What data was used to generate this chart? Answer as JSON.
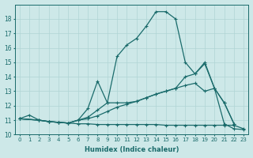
{
  "xlabel": "Humidex (Indice chaleur)",
  "bg_color": "#cde8e8",
  "line_color": "#1a6b6b",
  "grid_color": "#b0d4d4",
  "xlim": [
    -0.5,
    23.5
  ],
  "ylim": [
    10,
    19
  ],
  "yticks": [
    10,
    11,
    12,
    13,
    14,
    15,
    16,
    17,
    18
  ],
  "xticks": [
    0,
    1,
    2,
    3,
    4,
    5,
    6,
    7,
    8,
    9,
    10,
    11,
    12,
    13,
    14,
    15,
    16,
    17,
    18,
    19,
    20,
    21,
    22,
    23
  ],
  "series": [
    {
      "x": [
        0,
        1,
        2,
        3,
        4,
        5,
        6,
        7,
        8,
        9,
        10,
        11,
        12,
        13,
        14,
        15,
        16,
        17,
        18,
        19,
        20,
        21,
        22,
        23
      ],
      "y": [
        11.1,
        11.35,
        11.0,
        10.9,
        10.85,
        10.8,
        10.75,
        10.75,
        10.7,
        10.7,
        10.7,
        10.7,
        10.7,
        10.7,
        10.7,
        10.65,
        10.65,
        10.65,
        10.65,
        10.65,
        10.65,
        10.65,
        10.65,
        10.4
      ]
    },
    {
      "x": [
        0,
        2,
        3,
        4,
        5,
        6,
        7,
        8,
        9,
        10,
        11,
        12,
        13,
        14,
        15,
        16,
        17,
        18,
        19,
        20,
        21,
        22,
        23
      ],
      "y": [
        11.1,
        11.0,
        10.9,
        10.85,
        10.8,
        11.0,
        11.1,
        11.3,
        11.6,
        11.9,
        12.1,
        12.3,
        12.55,
        12.8,
        13.0,
        13.2,
        13.4,
        13.55,
        13.0,
        13.2,
        10.75,
        10.4,
        10.35
      ]
    },
    {
      "x": [
        0,
        2,
        3,
        4,
        5,
        6,
        7,
        8,
        9,
        10,
        11,
        12,
        13,
        14,
        15,
        16,
        17,
        18,
        19,
        20,
        21,
        22
      ],
      "y": [
        11.1,
        11.0,
        10.9,
        10.85,
        10.8,
        11.0,
        11.8,
        13.7,
        12.2,
        12.2,
        12.2,
        12.3,
        12.55,
        12.8,
        13.0,
        13.2,
        14.0,
        14.2,
        14.9,
        13.2,
        12.2,
        10.75
      ]
    },
    {
      "x": [
        0,
        2,
        3,
        4,
        5,
        6,
        7,
        8,
        9,
        10,
        11,
        12,
        13,
        14,
        15,
        16,
        17,
        18,
        19,
        20,
        21,
        22
      ],
      "y": [
        11.1,
        11.0,
        10.9,
        10.85,
        10.8,
        11.0,
        11.2,
        11.7,
        12.2,
        15.4,
        16.2,
        16.65,
        17.5,
        18.5,
        18.5,
        18.0,
        15.0,
        14.2,
        15.0,
        13.2,
        12.2,
        10.75
      ]
    }
  ]
}
